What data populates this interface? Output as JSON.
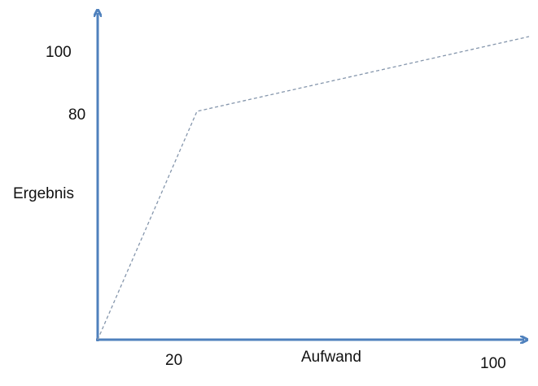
{
  "chart_data": {
    "type": "line",
    "xlabel": "Aufwand",
    "ylabel": "Ergebnis",
    "x_ticks": [
      "20",
      "100"
    ],
    "y_ticks": [
      "100",
      "80"
    ],
    "points": [
      {
        "x": 0,
        "y": 0
      },
      {
        "x": 20,
        "y": 80
      },
      {
        "x": 100,
        "y": 100
      }
    ],
    "line_style": "dashed",
    "colors": {
      "axis": "#4f81bd",
      "line": "#8596ac"
    }
  }
}
